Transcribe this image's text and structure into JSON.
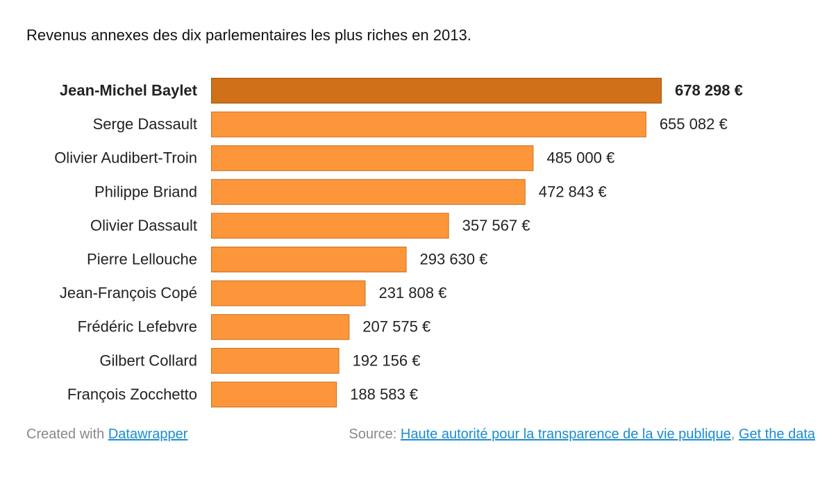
{
  "chart_data": {
    "type": "bar",
    "orientation": "horizontal",
    "title": "Revenus annexes des dix parlementaires les plus riches en 2013.",
    "categories": [
      "Jean-Michel Baylet",
      "Serge Dassault",
      "Olivier Audibert-Troin",
      "Philippe Briand",
      "Olivier Dassault",
      "Pierre Lellouche",
      "Jean-François Copé",
      "Frédéric Lefebvre",
      "Gilbert Collard",
      "François Zocchetto"
    ],
    "values": [
      678298,
      655082,
      485000,
      472843,
      357567,
      293630,
      231808,
      207575,
      192156,
      188583
    ],
    "value_labels": [
      "678 298 €",
      "655 082 €",
      "485 000 €",
      "472 843 €",
      "357 567 €",
      "293 630 €",
      "231 808 €",
      "207 575 €",
      "192 156 €",
      "188 583 €"
    ],
    "highlighted_index": 0,
    "colors": {
      "bar": "#fd963b",
      "bar_border": "#c96d1e",
      "highlight": "#d07019",
      "highlight_border": "#a6550f"
    },
    "xlim": [
      0,
      678298
    ],
    "grid": false,
    "legend": "none"
  },
  "footer": {
    "created_prefix": "Created with",
    "created_link": "Datawrapper",
    "source_prefix": "Source:",
    "source_link": "Haute autorité pour la transparence de la vie publique",
    "separator": ",",
    "data_link": "Get the data"
  }
}
